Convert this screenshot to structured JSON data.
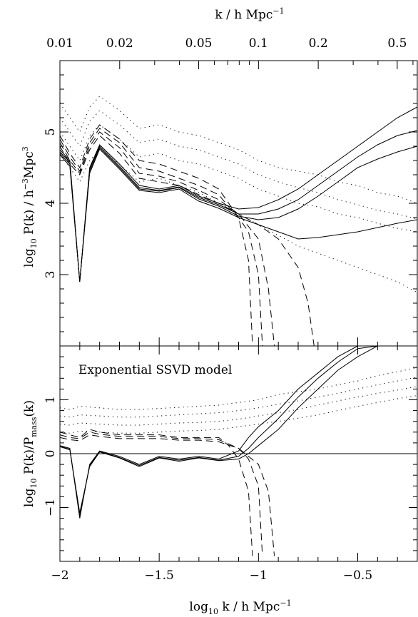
{
  "chart_data": [
    {
      "type": "line",
      "panel": "top",
      "xlabel": "log10 k / h Mpc^-1",
      "xlabel_parts": [
        "log",
        "10",
        " k / h Mpc",
        "−1"
      ],
      "top_xlabel": "k / h Mpc^-1",
      "top_xlabel_parts": [
        "k / h Mpc",
        "−1"
      ],
      "ylabel": "log10 P(k) / h^-3 Mpc^3",
      "ylabel_parts": [
        "log",
        "10",
        " P(k) / h",
        "−3",
        "Mpc",
        "3"
      ],
      "xlim": [
        -2.0,
        -0.2
      ],
      "ylim": [
        2.0,
        6.0
      ],
      "x_ticks": [
        -2,
        -1.5,
        -1,
        -0.5
      ],
      "top_ticks": [
        {
          "label": "0.01",
          "k": 0.01
        },
        {
          "label": "0.02",
          "k": 0.02
        },
        {
          "label": "0.05",
          "k": 0.05
        },
        {
          "label": "0.1",
          "k": 0.1
        },
        {
          "label": "0.2",
          "k": 0.2
        },
        {
          "label": "0.5",
          "k": 0.5
        }
      ],
      "y_ticks": [
        {
          "label": "3",
          "v": 3
        },
        {
          "label": "4",
          "v": 4
        },
        {
          "label": "5",
          "v": 5
        }
      ],
      "series": [
        {
          "style": "solid",
          "x": [
            -2.0,
            -1.95,
            -1.9,
            -1.85,
            -1.8,
            -1.7,
            -1.6,
            -1.5,
            -1.4,
            -1.3,
            -1.2,
            -1.1,
            -1.0,
            -0.9,
            -0.8,
            -0.7,
            -0.6,
            -0.5,
            -0.4,
            -0.3,
            -0.2
          ],
          "y": [
            4.75,
            4.6,
            2.9,
            4.5,
            4.82,
            4.55,
            4.25,
            4.2,
            4.25,
            4.1,
            4.0,
            3.92,
            3.94,
            4.05,
            4.2,
            4.4,
            4.6,
            4.8,
            5.0,
            5.2,
            5.35
          ]
        },
        {
          "style": "solid",
          "x": [
            -2.0,
            -1.95,
            -1.9,
            -1.85,
            -1.8,
            -1.7,
            -1.6,
            -1.5,
            -1.4,
            -1.3,
            -1.2,
            -1.1,
            -1.0,
            -0.9,
            -0.8,
            -0.7,
            -0.6,
            -0.5,
            -0.4,
            -0.3,
            -0.2
          ],
          "y": [
            4.72,
            4.58,
            2.9,
            4.48,
            4.8,
            4.52,
            4.22,
            4.18,
            4.23,
            4.08,
            3.98,
            3.85,
            3.85,
            3.92,
            4.05,
            4.25,
            4.45,
            4.65,
            4.82,
            4.95,
            5.02
          ]
        },
        {
          "style": "solid",
          "x": [
            -2.0,
            -1.95,
            -1.9,
            -1.85,
            -1.8,
            -1.7,
            -1.6,
            -1.5,
            -1.4,
            -1.3,
            -1.2,
            -1.1,
            -1.0,
            -0.9,
            -0.8,
            -0.7,
            -0.6,
            -0.5,
            -0.4,
            -0.3,
            -0.2
          ],
          "y": [
            4.7,
            4.55,
            2.9,
            4.45,
            4.78,
            4.5,
            4.2,
            4.17,
            4.22,
            4.06,
            3.96,
            3.82,
            3.77,
            3.8,
            3.92,
            4.1,
            4.3,
            4.5,
            4.62,
            4.72,
            4.8
          ]
        },
        {
          "style": "solid",
          "x": [
            -2.0,
            -1.95,
            -1.9,
            -1.85,
            -1.8,
            -1.7,
            -1.6,
            -1.5,
            -1.4,
            -1.3,
            -1.2,
            -1.1,
            -1.0,
            -0.9,
            -0.8,
            -0.7,
            -0.6,
            -0.5,
            -0.4,
            -0.3,
            -0.2
          ],
          "y": [
            4.68,
            4.52,
            2.9,
            4.42,
            4.76,
            4.48,
            4.18,
            4.15,
            4.2,
            4.03,
            3.93,
            3.8,
            3.7,
            3.6,
            3.5,
            3.52,
            3.56,
            3.6,
            3.66,
            3.72,
            3.77
          ]
        },
        {
          "style": "dashed",
          "x": [
            -2.0,
            -1.95,
            -1.9,
            -1.85,
            -1.8,
            -1.7,
            -1.6,
            -1.5,
            -1.4,
            -1.3,
            -1.2,
            -1.15,
            -1.1,
            -1.05,
            -1.03
          ],
          "y": [
            4.95,
            4.7,
            4.5,
            4.9,
            5.1,
            4.9,
            4.6,
            4.55,
            4.45,
            4.35,
            4.2,
            4.0,
            3.8,
            3.2,
            2.0
          ]
        },
        {
          "style": "dashed",
          "x": [
            -2.0,
            -1.95,
            -1.9,
            -1.85,
            -1.8,
            -1.7,
            -1.6,
            -1.5,
            -1.4,
            -1.3,
            -1.2,
            -1.15,
            -1.1,
            -1.05,
            -1.0,
            -0.98
          ],
          "y": [
            4.9,
            4.65,
            4.45,
            4.85,
            5.05,
            4.85,
            4.5,
            4.45,
            4.35,
            4.25,
            4.12,
            3.95,
            3.8,
            3.6,
            3.0,
            2.0
          ]
        },
        {
          "style": "dashed",
          "x": [
            -2.0,
            -1.95,
            -1.9,
            -1.85,
            -1.8,
            -1.7,
            -1.6,
            -1.5,
            -1.4,
            -1.3,
            -1.2,
            -1.1,
            -1.0,
            -0.95,
            -0.92
          ],
          "y": [
            4.85,
            4.6,
            4.42,
            4.8,
            5.0,
            4.78,
            4.42,
            4.38,
            4.3,
            4.18,
            4.05,
            3.85,
            3.5,
            2.8,
            2.0
          ]
        },
        {
          "style": "dashed",
          "x": [
            -2.0,
            -1.95,
            -1.9,
            -1.85,
            -1.8,
            -1.7,
            -1.6,
            -1.5,
            -1.4,
            -1.3,
            -1.2,
            -1.1,
            -1.0,
            -0.9,
            -0.8,
            -0.75,
            -0.72
          ],
          "y": [
            4.8,
            4.55,
            4.4,
            4.75,
            4.95,
            4.7,
            4.35,
            4.3,
            4.25,
            4.12,
            4.0,
            3.85,
            3.7,
            3.5,
            3.1,
            2.6,
            2.0
          ]
        },
        {
          "style": "dotted",
          "x": [
            -2.0,
            -1.95,
            -1.9,
            -1.85,
            -1.8,
            -1.7,
            -1.6,
            -1.5,
            -1.4,
            -1.3,
            -1.2,
            -1.1,
            -1.0,
            -0.9,
            -0.8,
            -0.7,
            -0.6,
            -0.5,
            -0.4,
            -0.3,
            -0.2
          ],
          "y": [
            5.4,
            5.2,
            5.0,
            5.35,
            5.5,
            5.3,
            5.05,
            5.1,
            5.0,
            4.95,
            4.85,
            4.75,
            4.6,
            4.5,
            4.45,
            4.4,
            4.3,
            4.25,
            4.15,
            4.1,
            4.0
          ]
        },
        {
          "style": "dotted",
          "x": [
            -2.0,
            -1.95,
            -1.9,
            -1.85,
            -1.8,
            -1.7,
            -1.6,
            -1.5,
            -1.4,
            -1.3,
            -1.2,
            -1.1,
            -1.0,
            -0.9,
            -0.8,
            -0.7,
            -0.6,
            -0.5,
            -0.4,
            -0.3,
            -0.2
          ],
          "y": [
            5.2,
            5.0,
            4.8,
            5.15,
            5.3,
            5.1,
            4.85,
            4.9,
            4.8,
            4.75,
            4.65,
            4.55,
            4.4,
            4.3,
            4.22,
            4.15,
            4.05,
            3.98,
            3.9,
            3.85,
            3.78
          ]
        },
        {
          "style": "dotted",
          "x": [
            -2.0,
            -1.95,
            -1.9,
            -1.85,
            -1.8,
            -1.7,
            -1.6,
            -1.5,
            -1.4,
            -1.3,
            -1.2,
            -1.1,
            -1.0,
            -0.9,
            -0.8,
            -0.7,
            -0.6,
            -0.5,
            -0.4,
            -0.3,
            -0.2
          ],
          "y": [
            5.0,
            4.8,
            4.6,
            4.95,
            5.1,
            4.9,
            4.65,
            4.7,
            4.6,
            4.55,
            4.45,
            4.35,
            4.2,
            4.1,
            4.0,
            3.95,
            3.85,
            3.8,
            3.72,
            3.65,
            3.6
          ]
        },
        {
          "style": "dotted",
          "x": [
            -2.0,
            -1.95,
            -1.9,
            -1.85,
            -1.8,
            -1.7,
            -1.6,
            -1.5,
            -1.4,
            -1.3,
            -1.2,
            -1.1,
            -1.0,
            -0.9,
            -0.8,
            -0.7,
            -0.6,
            -0.5,
            -0.4,
            -0.3,
            -0.2
          ],
          "y": [
            4.7,
            4.5,
            4.3,
            4.6,
            4.75,
            4.55,
            4.3,
            4.35,
            4.25,
            4.15,
            4.0,
            3.85,
            3.7,
            3.55,
            3.4,
            3.3,
            3.2,
            3.1,
            3.0,
            2.9,
            2.75
          ]
        }
      ]
    },
    {
      "type": "line",
      "panel": "bottom",
      "annotation": "Exponential SSVD model",
      "ylabel": "log10 P(k)/Pmass(k)",
      "ylabel_parts": [
        "log",
        "10",
        " P(k)/P",
        "mass",
        "(k)"
      ],
      "xlim": [
        -2.0,
        -0.2
      ],
      "ylim": [
        -2.0,
        2.0
      ],
      "y_ticks": [
        {
          "label": "−1",
          "v": -1
        },
        {
          "label": "0",
          "v": 0
        },
        {
          "label": "1",
          "v": 1
        }
      ],
      "x_ticks": [
        {
          "label": "−2",
          "v": -2
        },
        {
          "label": "−1.5",
          "v": -1.5
        },
        {
          "label": "−1",
          "v": -1
        },
        {
          "label": "−0.5",
          "v": -0.5
        }
      ],
      "hline": 0,
      "series": [
        {
          "style": "solid",
          "x": [
            -2.0,
            -1.95,
            -1.9,
            -1.85,
            -1.8,
            -1.7,
            -1.6,
            -1.5,
            -1.4,
            -1.3,
            -1.2,
            -1.1,
            -1.05,
            -1.0,
            -0.9,
            -0.8,
            -0.7,
            -0.6,
            -0.5,
            -0.45
          ],
          "y": [
            0.15,
            0.1,
            -1.2,
            -0.2,
            0.05,
            -0.05,
            -0.2,
            -0.05,
            -0.1,
            -0.05,
            -0.1,
            0.05,
            0.3,
            0.5,
            0.8,
            1.2,
            1.5,
            1.8,
            2.0,
            2.0
          ]
        },
        {
          "style": "solid",
          "x": [
            -2.0,
            -1.95,
            -1.9,
            -1.85,
            -1.8,
            -1.7,
            -1.6,
            -1.5,
            -1.4,
            -1.3,
            -1.2,
            -1.1,
            -1.05,
            -1.0,
            -0.9,
            -0.8,
            -0.7,
            -0.6,
            -0.5,
            -0.4
          ],
          "y": [
            0.14,
            0.08,
            -1.15,
            -0.22,
            0.04,
            -0.07,
            -0.22,
            -0.07,
            -0.12,
            -0.07,
            -0.12,
            -0.05,
            0.1,
            0.3,
            0.65,
            1.05,
            1.4,
            1.7,
            1.95,
            2.0
          ]
        },
        {
          "style": "solid",
          "x": [
            -2.0,
            -1.95,
            -1.9,
            -1.85,
            -1.8,
            -1.7,
            -1.6,
            -1.5,
            -1.4,
            -1.3,
            -1.2,
            -1.1,
            -1.05,
            -1.0,
            -0.9,
            -0.8,
            -0.7,
            -0.6,
            -0.5,
            -0.4,
            -0.35
          ],
          "y": [
            0.13,
            0.07,
            -1.1,
            -0.24,
            0.03,
            -0.08,
            -0.24,
            -0.08,
            -0.14,
            -0.08,
            -0.13,
            -0.1,
            0.0,
            0.15,
            0.45,
            0.85,
            1.2,
            1.55,
            1.8,
            2.0,
            2.0
          ]
        },
        {
          "style": "dashed",
          "x": [
            -2.0,
            -1.95,
            -1.9,
            -1.85,
            -1.8,
            -1.7,
            -1.6,
            -1.5,
            -1.4,
            -1.3,
            -1.2,
            -1.15,
            -1.1,
            -1.05,
            -1.03
          ],
          "y": [
            0.4,
            0.35,
            0.3,
            0.45,
            0.4,
            0.35,
            0.35,
            0.35,
            0.3,
            0.3,
            0.3,
            0.15,
            -0.1,
            -0.7,
            -1.9
          ]
        },
        {
          "style": "dashed",
          "x": [
            -2.0,
            -1.95,
            -1.9,
            -1.85,
            -1.8,
            -1.7,
            -1.6,
            -1.5,
            -1.4,
            -1.3,
            -1.2,
            -1.1,
            -1.05,
            -1.0,
            -0.98
          ],
          "y": [
            0.35,
            0.3,
            0.28,
            0.4,
            0.36,
            0.32,
            0.32,
            0.32,
            0.28,
            0.28,
            0.26,
            0.1,
            -0.1,
            -0.6,
            -1.9
          ]
        },
        {
          "style": "dashed",
          "x": [
            -2.0,
            -1.95,
            -1.9,
            -1.85,
            -1.8,
            -1.7,
            -1.6,
            -1.5,
            -1.4,
            -1.3,
            -1.2,
            -1.1,
            -1.0,
            -0.95,
            -0.92
          ],
          "y": [
            0.3,
            0.26,
            0.24,
            0.35,
            0.32,
            0.28,
            0.28,
            0.28,
            0.25,
            0.25,
            0.22,
            0.1,
            -0.2,
            -0.7,
            -1.9
          ]
        },
        {
          "style": "dotted",
          "x": [
            -2.0,
            -1.95,
            -1.9,
            -1.8,
            -1.7,
            -1.6,
            -1.5,
            -1.4,
            -1.3,
            -1.2,
            -1.1,
            -1.0,
            -0.9,
            -0.8,
            -0.7,
            -0.6,
            -0.5,
            -0.4,
            -0.3,
            -0.2
          ],
          "y": [
            0.85,
            0.82,
            0.88,
            0.85,
            0.82,
            0.82,
            0.84,
            0.86,
            0.88,
            0.9,
            0.95,
            1.0,
            1.1,
            1.15,
            1.2,
            1.28,
            1.35,
            1.45,
            1.52,
            1.6
          ]
        },
        {
          "style": "dotted",
          "x": [
            -2.0,
            -1.95,
            -1.9,
            -1.8,
            -1.7,
            -1.6,
            -1.5,
            -1.4,
            -1.3,
            -1.2,
            -1.1,
            -1.0,
            -0.9,
            -0.8,
            -0.7,
            -0.6,
            -0.5,
            -0.4,
            -0.3,
            -0.2
          ],
          "y": [
            0.7,
            0.68,
            0.72,
            0.7,
            0.68,
            0.68,
            0.7,
            0.72,
            0.74,
            0.76,
            0.8,
            0.85,
            0.92,
            0.98,
            1.05,
            1.12,
            1.2,
            1.28,
            1.35,
            1.42
          ]
        },
        {
          "style": "dotted",
          "x": [
            -2.0,
            -1.95,
            -1.9,
            -1.8,
            -1.7,
            -1.6,
            -1.5,
            -1.4,
            -1.3,
            -1.2,
            -1.1,
            -1.0,
            -0.9,
            -0.8,
            -0.7,
            -0.6,
            -0.5,
            -0.4,
            -0.3,
            -0.2
          ],
          "y": [
            0.55,
            0.53,
            0.57,
            0.55,
            0.53,
            0.53,
            0.55,
            0.57,
            0.58,
            0.6,
            0.64,
            0.7,
            0.76,
            0.82,
            0.9,
            0.98,
            1.05,
            1.12,
            1.18,
            1.25
          ]
        },
        {
          "style": "dotted",
          "x": [
            -2.0,
            -1.95,
            -1.9,
            -1.8,
            -1.7,
            -1.6,
            -1.5,
            -1.4,
            -1.3,
            -1.2,
            -1.1,
            -1.0,
            -0.9,
            -0.8,
            -0.7,
            -0.6,
            -0.5,
            -0.4,
            -0.3,
            -0.2
          ],
          "y": [
            0.4,
            0.38,
            0.42,
            0.4,
            0.38,
            0.38,
            0.4,
            0.42,
            0.43,
            0.45,
            0.5,
            0.55,
            0.6,
            0.66,
            0.72,
            0.8,
            0.88,
            0.95,
            1.02,
            1.08
          ]
        }
      ]
    }
  ]
}
